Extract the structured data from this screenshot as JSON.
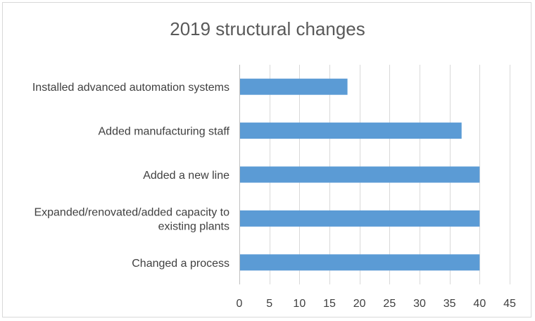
{
  "chart_data": {
    "type": "bar",
    "orientation": "horizontal",
    "title": "2019 structural changes",
    "categories": [
      [
        "Installed advanced automation systems"
      ],
      [
        "Added manufacturing staff"
      ],
      [
        "Added a new line"
      ],
      [
        "Expanded/renovated/added capacity to",
        "existing plants"
      ],
      [
        "Changed a process"
      ]
    ],
    "values": [
      18,
      37,
      40,
      40,
      40
    ],
    "xlim": [
      0,
      45
    ],
    "xticks": [
      "0",
      "5",
      "10",
      "15",
      "20",
      "25",
      "30",
      "35",
      "40",
      "45"
    ],
    "grid": true,
    "legend": "none",
    "colors": {
      "bar": "#5b9bd5",
      "grid": "#d9d9d9",
      "text": "#404040",
      "title": "#595959"
    }
  }
}
